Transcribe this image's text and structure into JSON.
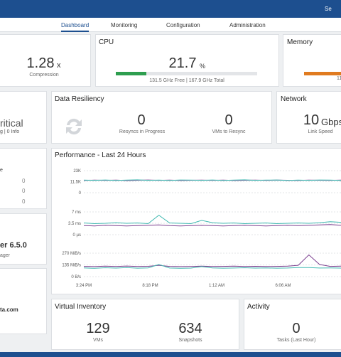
{
  "header": {
    "search": "Se"
  },
  "nav": [
    "Dashboard",
    "Monitoring",
    "Configuration",
    "Administration"
  ],
  "capacity": {
    "value": 1.28,
    "unit": "x",
    "label": "Compression"
  },
  "cpu": {
    "title": "CPU",
    "value": 21.7,
    "unit": "%",
    "summary": "131.5 GHz Free | 167.9 GHz Total"
  },
  "memory": {
    "title": "Memory",
    "summary": "11"
  },
  "health": {
    "status": "ritical",
    "detail": "g | 0 Info"
  },
  "resiliency": {
    "title": "Data Resiliency",
    "items": [
      {
        "value": 0,
        "label": "Resyncs in Progress"
      },
      {
        "value": 0,
        "label": "VMs to Resync"
      }
    ]
  },
  "network": {
    "title": "Network",
    "value": 10,
    "unit": "Gbps",
    "label": "Link Speed"
  },
  "side1": {
    "label": "e",
    "values": [
      0,
      0,
      0
    ]
  },
  "side2": {
    "version": "er 6.5.0",
    "label": "ager"
  },
  "side3": {
    "text": "ta.com"
  },
  "performance": {
    "title": "Performance - Last 24 Hours",
    "xticks": [
      "3:24 PM",
      "8:18 PM",
      "1:12 AM",
      "6:06 AM"
    ],
    "charts": [
      {
        "ylim": [
          0,
          23000
        ],
        "yticks": [
          {
            "value": 0,
            "label": "0"
          },
          {
            "value": 11500,
            "label": "11.5K"
          },
          {
            "value": 23000,
            "label": "23K"
          }
        ],
        "series": [
          {
            "color": "#7a3e8e",
            "values": [
              12800,
              13100,
              12900,
              13200,
              12700,
              13000,
              13300,
              12900,
              13100,
              12800,
              13000,
              13200,
              12900,
              13100,
              12800,
              13000,
              13200,
              12900,
              13100,
              13000,
              12800,
              13200,
              13000,
              12900,
              13100
            ]
          },
          {
            "color": "#3fb8b0",
            "values": [
              13200,
              12900,
              13300,
              12800,
              13100,
              13400,
              12900,
              13200,
              12800,
              13300,
              13100,
              12900,
              13300,
              12800,
              13200,
              13400,
              12900,
              13100,
              13300,
              12800,
              13200,
              12900,
              13300,
              13100,
              12800
            ]
          }
        ]
      },
      {
        "ylim": [
          0,
          7
        ],
        "yticks": [
          {
            "value": 0,
            "label": "0 µs"
          },
          {
            "value": 3.5,
            "label": "3.5 ms"
          },
          {
            "value": 7,
            "label": "7 ms"
          }
        ],
        "series": [
          {
            "color": "#7a3e8e",
            "values": [
              2.8,
              2.7,
              2.9,
              2.8,
              2.7,
              2.8,
              2.9,
              3.0,
              2.8,
              2.7,
              2.8,
              2.9,
              2.8,
              2.7,
              2.8,
              2.9,
              2.8,
              2.7,
              2.8,
              2.9,
              2.8,
              2.9,
              3.0,
              3.1,
              2.9
            ]
          },
          {
            "color": "#3fb8b0",
            "values": [
              3.6,
              3.4,
              3.5,
              3.7,
              3.5,
              3.6,
              3.4,
              6.0,
              3.6,
              3.5,
              3.4,
              4.4,
              3.7,
              3.5,
              3.6,
              3.4,
              3.5,
              3.6,
              3.4,
              3.5,
              3.6,
              3.5,
              3.7,
              4.0,
              3.8
            ]
          }
        ]
      },
      {
        "ylim": [
          0,
          270
        ],
        "yticks": [
          {
            "value": 0,
            "label": "0 B/s"
          },
          {
            "value": 135,
            "label": "135 MiB/s"
          },
          {
            "value": 270,
            "label": "270 MiB/s"
          }
        ],
        "series": [
          {
            "color": "#7a3e8e",
            "values": [
              118,
              115,
              120,
              117,
              122,
              116,
              119,
              130,
              118,
              115,
              117,
              120,
              116,
              118,
              121,
              117,
              119,
              116,
              118,
              120,
              130,
              250,
              140,
              118,
              120
            ]
          },
          {
            "color": "#3fb8b0",
            "values": [
              100,
              96,
              102,
              98,
              104,
              97,
              101,
              140,
              99,
              96,
              98,
              115,
              100,
              97,
              99,
              102,
              98,
              100,
              97,
              99,
              104,
              105,
              99,
              100,
              98
            ]
          }
        ]
      }
    ]
  },
  "inventory": {
    "title": "Virtual Inventory",
    "items": [
      {
        "value": 129,
        "label": "VMs"
      },
      {
        "value": 634,
        "label": "Snapshots"
      }
    ]
  },
  "activity": {
    "title": "Activity",
    "value": 0,
    "label": "Tasks (Last Hour)"
  }
}
